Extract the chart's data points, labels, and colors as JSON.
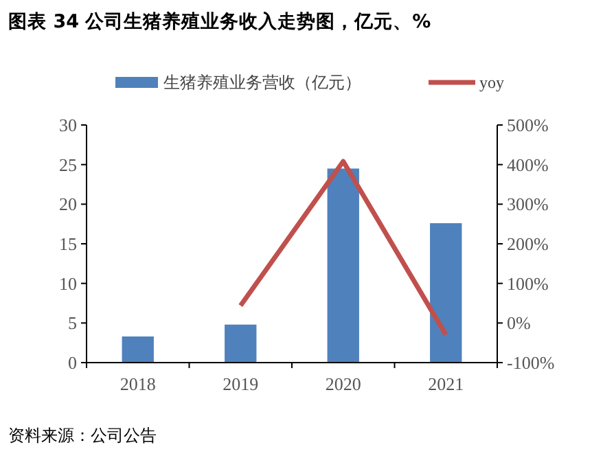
{
  "chart_data": {
    "type": "bar",
    "title": "图表 34 公司生猪养殖业务收入走势图，亿元、%",
    "categories": [
      "2018",
      "2019",
      "2020",
      "2021"
    ],
    "series": [
      {
        "name": "生猪养殖业务营收（亿元）",
        "color": "#4f81bd",
        "values": [
          3.3,
          4.8,
          24.5,
          17.6
        ]
      },
      {
        "name": "yoy",
        "type": "line",
        "axis": "y2",
        "color": "#c0504d",
        "values": [
          null,
          44,
          408,
          -30
        ]
      }
    ],
    "ylim": [
      0,
      30
    ],
    "yticks": [
      0,
      5,
      10,
      15,
      20,
      25,
      30
    ],
    "y2lim": [
      -100,
      500
    ],
    "y2ticks": [
      {
        "value": -100,
        "label": "-100%"
      },
      {
        "value": 0,
        "label": "0%"
      },
      {
        "value": 100,
        "label": "100%"
      },
      {
        "value": 200,
        "label": "200%"
      },
      {
        "value": 300,
        "label": "300%"
      },
      {
        "value": 400,
        "label": "400%"
      },
      {
        "value": 500,
        "label": "500%"
      }
    ],
    "legend": "top",
    "grid": false,
    "marker": "none",
    "line_style": "solid",
    "annotations": [
      "资料来源：公司公告"
    ]
  }
}
